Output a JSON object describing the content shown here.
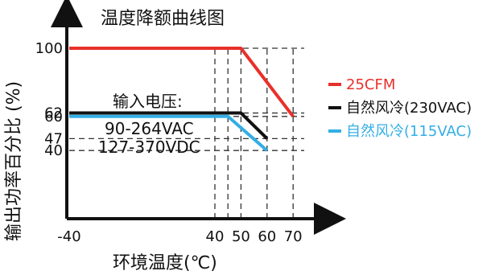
{
  "chart_data": {
    "type": "line",
    "title": "温度降额曲线图",
    "xlabel": "环境温度(℃)",
    "ylabel": "输出功率百分比 (%)",
    "xlim": [
      -40,
      75
    ],
    "ylim": [
      0,
      110
    ],
    "x_ticks": [
      "-40",
      "40",
      "50",
      "60",
      "70"
    ],
    "y_ticks": [
      "100",
      "62",
      "60",
      "47",
      "40"
    ],
    "grid": "dashed reference lines",
    "legend_position": "right",
    "annotation": {
      "heading": "输入电压:",
      "line1": "90-264VAC",
      "line2": "127-370VDC"
    },
    "series": [
      {
        "name": "25CFM",
        "color": "#e8302a",
        "points": [
          [
            -40,
            100
          ],
          [
            50,
            100
          ],
          [
            70,
            60
          ]
        ]
      },
      {
        "name": "自然风冷(230VAC)",
        "color": "#111111",
        "points": [
          [
            -40,
            62
          ],
          [
            50,
            62
          ],
          [
            60,
            47
          ]
        ]
      },
      {
        "name": "自然风冷(115VAC)",
        "color": "#33aee5",
        "points": [
          [
            -40,
            60
          ],
          [
            45,
            60
          ],
          [
            60,
            40
          ]
        ]
      }
    ]
  }
}
